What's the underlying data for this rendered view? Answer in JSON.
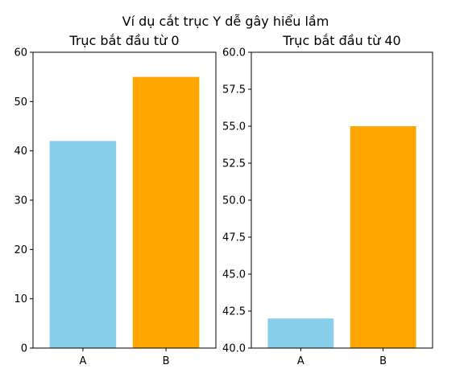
{
  "figure": {
    "suptitle": "Ví dụ cắt trục Y dễ gây hiểu lầm"
  },
  "chart_data": [
    {
      "type": "bar",
      "title": "Trục bắt đầu từ 0",
      "xlabel": "",
      "ylabel": "",
      "categories": [
        "A",
        "B"
      ],
      "values": [
        42,
        55
      ],
      "colors": [
        "#87ceeb",
        "#ffa500"
      ],
      "ylim": [
        0,
        60
      ],
      "yticks": [
        0,
        10,
        20,
        30,
        40,
        50,
        60
      ],
      "ytick_labels": [
        "0",
        "10",
        "20",
        "30",
        "40",
        "50",
        "60"
      ],
      "grid": false,
      "legend": "none"
    },
    {
      "type": "bar",
      "title": "Trục bắt đầu từ 40",
      "xlabel": "",
      "ylabel": "",
      "categories": [
        "A",
        "B"
      ],
      "values": [
        42,
        55
      ],
      "colors": [
        "#87ceeb",
        "#ffa500"
      ],
      "ylim": [
        40,
        60
      ],
      "yticks": [
        40,
        42.5,
        45,
        47.5,
        50,
        52.5,
        55,
        57.5,
        60
      ],
      "ytick_labels": [
        "40.0",
        "42.5",
        "45.0",
        "47.5",
        "50.0",
        "52.5",
        "55.0",
        "57.5",
        "60.0"
      ],
      "grid": false,
      "legend": "none"
    }
  ]
}
